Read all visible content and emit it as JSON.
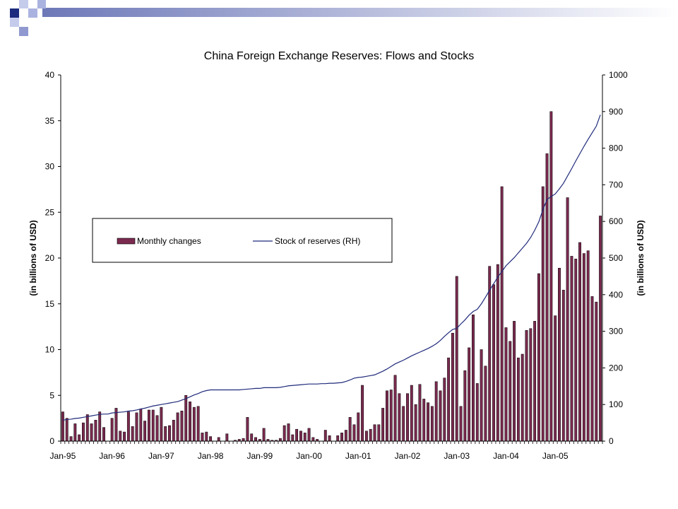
{
  "slide": {
    "corner_colors": [
      "#1c2b7e",
      "#aab3e0",
      "#5b68b0"
    ],
    "band_color": "#6d78b8"
  },
  "chart_data": {
    "type": "bar",
    "title": "China Foreign Exchange Reserves: Flows and Stocks",
    "ylabel_left": "(in billions of USD)",
    "ylabel_right": "(in billions of USD)",
    "ylim_left": [
      0,
      40
    ],
    "ylim_right": [
      0,
      1000
    ],
    "yticks_left": [
      "0",
      "5",
      "10",
      "15",
      "20",
      "25",
      "30",
      "35",
      "40"
    ],
    "yticks_right": [
      "0",
      "100",
      "200",
      "300",
      "400",
      "500",
      "600",
      "700",
      "800",
      "900",
      "1000"
    ],
    "xtick_labels": [
      "Jan-95",
      "Jan-96",
      "Jan-97",
      "Jan-98",
      "Jan-99",
      "Jan-00",
      "Jan-01",
      "Jan-02",
      "Jan-03",
      "Jan-04",
      "Jan-05"
    ],
    "grid": false,
    "legend": {
      "placement": "upper-left",
      "bar_label": "Monthly changes",
      "line_label": "Stock of reserves (RH)"
    },
    "bar_color": "#7b2a4f",
    "line_color": "#1f2a7a",
    "series": [
      {
        "name": "Monthly changes",
        "kind": "bar",
        "axis": "left",
        "values": [
          3.2,
          2.5,
          0.5,
          1.9,
          0.7,
          2,
          2.9,
          1.9,
          2.3,
          3.2,
          1.5,
          0,
          2.5,
          3.6,
          1.1,
          1,
          3.2,
          1.6,
          3.1,
          3.5,
          2.2,
          3.4,
          3.4,
          2.8,
          3.7,
          1.6,
          1.7,
          2.3,
          3.1,
          3.3,
          5,
          4.3,
          3.7,
          3.8,
          0.9,
          1,
          0.5,
          0,
          0.4,
          0,
          0.8,
          0,
          0.1,
          0.2,
          0.3,
          2.6,
          0.8,
          0.4,
          0.2,
          1.4,
          0.2,
          0.1,
          0.1,
          0.3,
          1.7,
          1.9,
          0.7,
          1.3,
          1.1,
          0.9,
          1.4,
          0.4,
          0.2,
          0,
          1.2,
          0.6,
          0,
          0.6,
          0.9,
          1.2,
          2.6,
          1.8,
          3.1,
          6.1,
          1.1,
          1.3,
          1.8,
          1.8,
          3.6,
          5.5,
          5.6,
          7.2,
          5.2,
          3.8,
          5.2,
          6.1,
          4,
          6.2,
          4.6,
          4.2,
          3.8,
          6.5,
          5.5,
          6.9,
          9.1,
          11.8,
          18,
          3.8,
          7.7,
          10.2,
          13.8,
          6.3,
          10,
          8.2,
          19.1,
          17.1,
          19.3,
          27.8,
          12.4,
          10.9,
          13.1,
          9.1,
          9.5,
          12.1,
          12.3,
          13.1,
          18.3,
          27.8,
          31.4,
          36,
          13.7,
          18.9,
          16.5,
          26.6,
          20.2,
          19.9,
          21.7,
          20.5,
          20.8,
          15.8,
          15.2,
          24.6
        ]
      },
      {
        "name": "Stock of reserves (RH)",
        "kind": "line",
        "axis": "right",
        "values": [
          57,
          59,
          60,
          62,
          63,
          65,
          67,
          69,
          71,
          73,
          74,
          74,
          77,
          78,
          79,
          80,
          82,
          83,
          85,
          88,
          90,
          93,
          96,
          98,
          100,
          102,
          104,
          106,
          108,
          112,
          116,
          121,
          126,
          130,
          135,
          138,
          140,
          140,
          140,
          140,
          140,
          140,
          140,
          140,
          141,
          142,
          143,
          144,
          144,
          146,
          146,
          146,
          146,
          147,
          149,
          151,
          152,
          153,
          154,
          155,
          156,
          156,
          156,
          157,
          157,
          158,
          158,
          159,
          160,
          163,
          167,
          172,
          174,
          175,
          177,
          179,
          181,
          186,
          191,
          197,
          204,
          211,
          216,
          221,
          227,
          233,
          238,
          243,
          248,
          253,
          259,
          266,
          275,
          286,
          296,
          305,
          308,
          320,
          331,
          344,
          354,
          360,
          375,
          393,
          412,
          430,
          448,
          463,
          479,
          490,
          501,
          514,
          527,
          540,
          556,
          576,
          599,
          632,
          660,
          668,
          675,
          689,
          704,
          724,
          744,
          765,
          785,
          805,
          824,
          842,
          860,
          891
        ]
      }
    ]
  }
}
